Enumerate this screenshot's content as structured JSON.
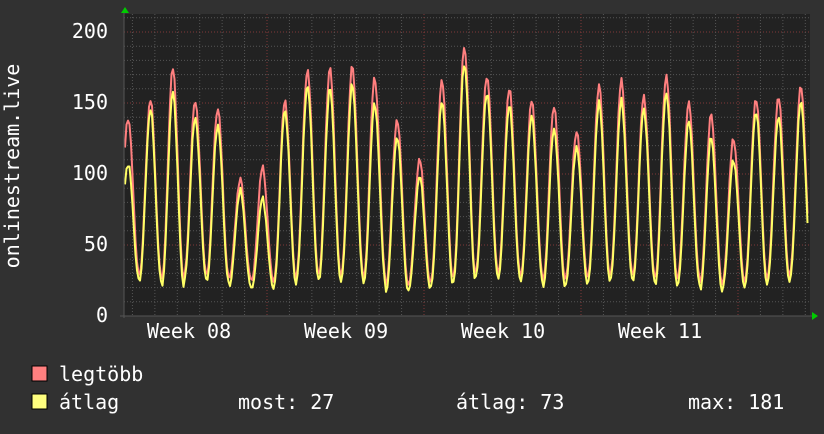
{
  "chart_data": {
    "type": "line",
    "ylabel": "onlinestream.live",
    "ylim": [
      0,
      200
    ],
    "yticks": [
      "0",
      "50",
      "100",
      "150",
      "200"
    ],
    "xticks": [
      "Week 08",
      "Week 09",
      "Week 10",
      "Week 11"
    ],
    "grid": true,
    "legend_placement": "bottom-left",
    "series": [
      {
        "name": "legtöbb",
        "color": "#ff7f7f",
        "daily_peaks": [
          140,
          152,
          174,
          152,
          147,
          96,
          104,
          152,
          174,
          174,
          175,
          168,
          139,
          110,
          165,
          190,
          170,
          160,
          151,
          148,
          131,
          162,
          165,
          155,
          170,
          150,
          141,
          125,
          154,
          154,
          161
        ],
        "daily_troughs": [
          30,
          28,
          25,
          30,
          28,
          26,
          24,
          26,
          30,
          28,
          30,
          27,
          22,
          22,
          25,
          28,
          32,
          30,
          28,
          25,
          27,
          28,
          30,
          28,
          26,
          27,
          22,
          24,
          26,
          28,
          30
        ]
      },
      {
        "name": "átlag",
        "color": "#ffff66",
        "daily_peaks": [
          108,
          145,
          157,
          140,
          135,
          88,
          82,
          145,
          163,
          160,
          162,
          150,
          127,
          98,
          150,
          178,
          158,
          148,
          140,
          132,
          120,
          150,
          151,
          146,
          158,
          137,
          125,
          110,
          145,
          140,
          150
        ],
        "daily_troughs": [
          26,
          24,
          20,
          26,
          24,
          20,
          19,
          22,
          26,
          24,
          26,
          23,
          17,
          18,
          21,
          24,
          28,
          26,
          24,
          20,
          22,
          24,
          26,
          24,
          21,
          22,
          17,
          20,
          22,
          24,
          26
        ]
      }
    ]
  },
  "legend": {
    "items": [
      {
        "label": "legtöbb",
        "color": "#ff7f7f"
      },
      {
        "label": "átlag",
        "color": "#ffff66"
      }
    ],
    "stats": {
      "most": "most: 27",
      "atlag": "átlag: 73",
      "max": "max: 181"
    }
  }
}
